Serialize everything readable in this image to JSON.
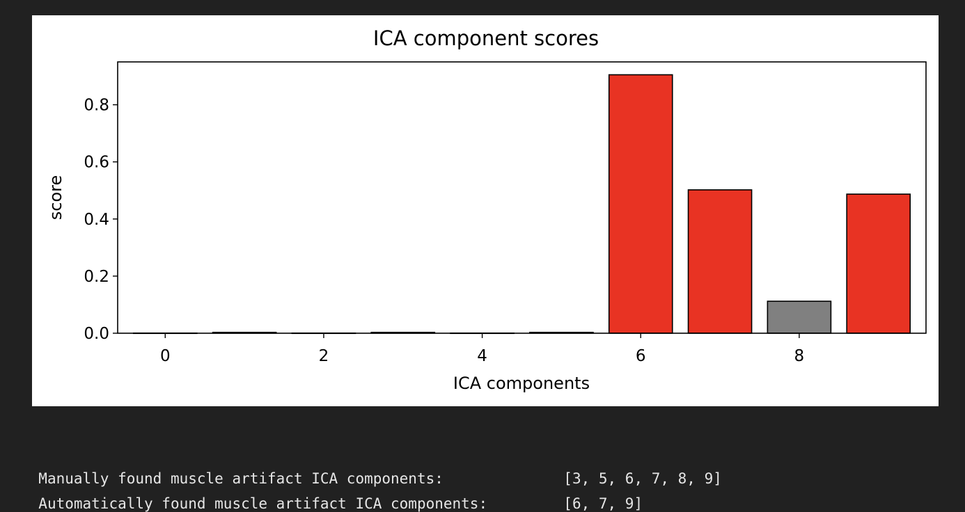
{
  "chart_data": {
    "type": "bar",
    "title": "ICA component scores",
    "xlabel": "ICA components",
    "ylabel": "score",
    "x": [
      0,
      1,
      2,
      3,
      4,
      5,
      6,
      7,
      8,
      9
    ],
    "values": [
      0.0005,
      0.003,
      0.0005,
      0.003,
      0.0005,
      0.003,
      0.905,
      0.502,
      0.112,
      0.487
    ],
    "bar_colors": [
      "#808080",
      "#808080",
      "#808080",
      "#808080",
      "#808080",
      "#808080",
      "#e83323",
      "#e83323",
      "#808080",
      "#e83323"
    ],
    "xticks": [
      0,
      2,
      4,
      6,
      8
    ],
    "yticks": [
      0.0,
      0.2,
      0.4,
      0.6,
      0.8
    ],
    "ytick_labels": [
      "0.0",
      "0.2",
      "0.4",
      "0.6",
      "0.8"
    ],
    "xlim": [
      -0.6,
      9.6
    ],
    "ylim": [
      0,
      0.95
    ],
    "grid": false
  },
  "output": {
    "line1_label": "Manually found muscle artifact ICA components:",
    "line1_value": "[3, 5, 6, 7, 8, 9]",
    "line2_label": "Automatically found muscle artifact ICA components:",
    "line2_value": "[6, 7, 9]"
  },
  "colors": {
    "background": "#212121",
    "figure": "#ffffff",
    "highlight": "#e83323",
    "neutral": "#808080"
  }
}
